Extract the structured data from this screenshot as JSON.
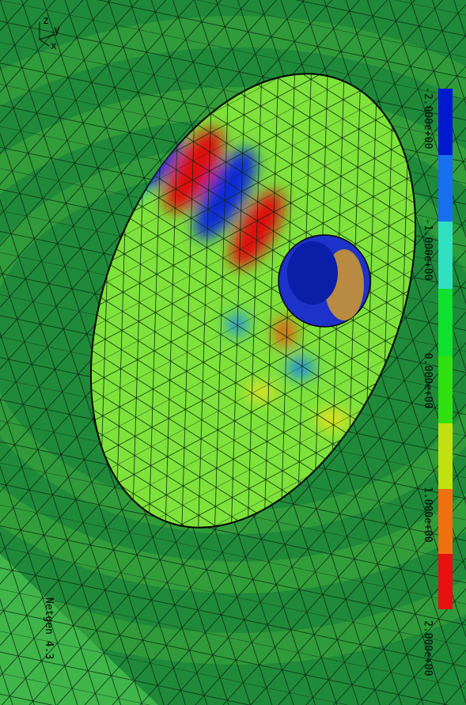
{
  "colorbar": {
    "labels": [
      "-2.000e+00",
      "-1.000e+00",
      "0.000e+00",
      "1.000e+00",
      "2.000e+00"
    ]
  },
  "watermark": "Netgen 4.3",
  "axes": [
    "z",
    "y",
    "x"
  ]
}
